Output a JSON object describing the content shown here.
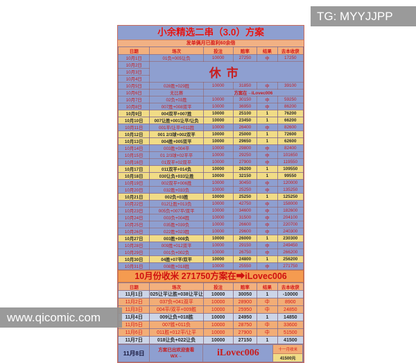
{
  "watermarks": {
    "tg": "TG: MYYJJPP",
    "site": "www.qicomic.com"
  },
  "colors": {
    "accent_red": "#d41818",
    "win_row_bg": "#8e9fd0",
    "loss_row_bg": "#f1dc86",
    "header_bg": "#f3b07e",
    "banner_bg": "#f59b50",
    "nov_win_bg": "#f2ad76",
    "nov_loss_bg": "#ccd5e8",
    "watermark_gray": "#919191"
  },
  "table": {
    "title": "小余精选二串（3.0）方案",
    "subtitle": "发单俩月已盈利60余倍",
    "columns": [
      "日期",
      "场次",
      "投注",
      "赔率",
      "结果",
      "去本收获"
    ],
    "closed_notice": "休市",
    "no_match_label": "无比赛",
    "plan_at_label": "方案在→iLovec006",
    "october": {
      "banner": "10月份收米  271750方案在➡iLovec006",
      "rows": [
        {
          "date": "10月1日",
          "match": "01负+005让负",
          "stake": "10000",
          "odds": "27250",
          "result": "中",
          "profit": "17250",
          "win": true
        },
        {
          "date": "10月2日",
          "type": "closed_start"
        },
        {
          "date": "10月3日",
          "type": "closed"
        },
        {
          "date": "10月4日",
          "type": "closed"
        },
        {
          "date": "10月5日",
          "match": "028胜+029胜",
          "stake": "10000",
          "odds": "31850",
          "result": "中",
          "profit": "39100",
          "win": true
        },
        {
          "date": "10月6日",
          "type": "nomatch"
        },
        {
          "date": "10月7日",
          "match": "02负+03胜",
          "stake": "10000",
          "odds": "30150",
          "result": "中",
          "profit": "59250",
          "win": true
        },
        {
          "date": "10月8日",
          "match": "007胜+008双平",
          "stake": "10000",
          "odds": "36950",
          "result": "中",
          "profit": "86200",
          "win": true
        },
        {
          "date": "10月9日",
          "match": "004双平+007胜",
          "stake": "10000",
          "odds": "25100",
          "result": "1",
          "profit": "76200",
          "win": false
        },
        {
          "date": "10月10日",
          "match": "007让胜+001让平/让负",
          "stake": "10000",
          "odds": "23450",
          "result": "1",
          "profit": "66200",
          "win": false
        },
        {
          "date": "10月11日",
          "match": "001平/让平+011胜",
          "stake": "10000",
          "odds": "26400",
          "result": "中",
          "profit": "82600",
          "win": true
        },
        {
          "date": "10月12日",
          "match": "001 2/3球+002双平",
          "stake": "10000",
          "odds": "25000",
          "result": "1",
          "profit": "72600",
          "win": false
        },
        {
          "date": "10月13日",
          "match": "004胜+005双平",
          "stake": "10000",
          "odds": "29650",
          "result": "1",
          "profit": "62600",
          "win": false
        },
        {
          "date": "10月14日",
          "match": "003胜+004平",
          "stake": "10000",
          "odds": "29800",
          "result": "中",
          "profit": "82400",
          "win": true
        },
        {
          "date": "10月15日",
          "match": "01 2/3球+02平平",
          "stake": "10000",
          "odds": "29250",
          "result": "中",
          "profit": "101650",
          "win": true
        },
        {
          "date": "10月16日",
          "match": "01双平+02双平",
          "stake": "10000",
          "odds": "27900",
          "result": "中",
          "profit": "119550",
          "win": true
        },
        {
          "date": "10月17日",
          "match": "011双平+014负",
          "stake": "10000",
          "odds": "26200",
          "result": "1",
          "profit": "109550",
          "win": false
        },
        {
          "date": "10月18日",
          "match": "030让负+033让胜",
          "stake": "10000",
          "odds": "32150",
          "result": "1",
          "profit": "99550",
          "win": false
        },
        {
          "date": "10月19日",
          "match": "002双平+006胜",
          "stake": "10000",
          "odds": "30450",
          "result": "中",
          "profit": "120000",
          "win": true
        },
        {
          "date": "10月20日",
          "match": "032胜+033负",
          "stake": "10000",
          "odds": "25250",
          "result": "中",
          "profit": "135250",
          "win": true
        },
        {
          "date": "10月21日",
          "match": "002负+03胜",
          "stake": "10000",
          "odds": "25250",
          "result": "1",
          "profit": "125250",
          "win": false
        },
        {
          "date": "10月22日",
          "match": "012让胜+013负",
          "stake": "10000",
          "odds": "42750",
          "result": "中",
          "profit": "158000",
          "win": true
        },
        {
          "date": "10月23日",
          "match": "005负+007平/双平",
          "stake": "10000",
          "odds": "34600",
          "result": "中",
          "profit": "182600",
          "win": true
        },
        {
          "date": "10月24日",
          "match": "003负+004胜",
          "stake": "10000",
          "odds": "31500",
          "result": "中",
          "profit": "204100",
          "win": true
        },
        {
          "date": "10月25日",
          "match": "035胜+039负",
          "stake": "10000",
          "odds": "26600",
          "result": "中",
          "profit": "220700",
          "win": true
        },
        {
          "date": "10月26日",
          "match": "022胜+023胜",
          "stake": "10000",
          "odds": "29600",
          "result": "中",
          "profit": "240300",
          "win": true
        },
        {
          "date": "10月27日",
          "match": "003胜+008负",
          "stake": "10000",
          "odds": "26000",
          "result": "1",
          "profit": "230300",
          "win": false
        },
        {
          "date": "10月28日",
          "match": "009胜+012双平",
          "stake": "10000",
          "odds": "29150",
          "result": "中",
          "profit": "249450",
          "win": true
        },
        {
          "date": "10月29日",
          "match": "001负+002负",
          "stake": "10000",
          "odds": "26750",
          "result": "中",
          "profit": "266200",
          "win": true
        },
        {
          "date": "10月30日",
          "match": "04胜+07平/双平",
          "stake": "10000",
          "odds": "24800",
          "result": "1",
          "profit": "256200",
          "win": false
        },
        {
          "date": "10月31日",
          "match": "008胜+018胜",
          "stake": "10000",
          "odds": "25550",
          "result": "中",
          "profit": "271750",
          "win": true
        }
      ]
    },
    "november": {
      "rows": [
        {
          "date": "11月1日",
          "match": "025让平让胜+038让平让胜",
          "stake": "10000",
          "odds": "30050",
          "result": "1",
          "profit": "-10000",
          "win": false
        },
        {
          "date": "11月2日",
          "match": "037负+041双平",
          "stake": "10000",
          "odds": "28900",
          "result": "中",
          "profit": "8900",
          "win": true
        },
        {
          "date": "11月3日",
          "match": "004平/双平+009胜",
          "stake": "10000",
          "odds": "25950",
          "result": "中",
          "profit": "24850",
          "win": true
        },
        {
          "date": "11月4日",
          "match": "009让负+018胜",
          "stake": "10000",
          "odds": "24950",
          "result": "1",
          "profit": "14850",
          "win": false
        },
        {
          "date": "11月5日",
          "match": "007胜+011负",
          "stake": "10000",
          "odds": "28750",
          "result": "中",
          "profit": "33600",
          "win": true
        },
        {
          "date": "11月6日",
          "match": "011胜+012平/让平",
          "stake": "10000",
          "odds": "27900",
          "result": "中",
          "profit": "51500",
          "win": true
        },
        {
          "date": "11月7日",
          "match": "018让负+022让负",
          "stake": "10000",
          "odds": "27150",
          "result": "1",
          "profit": "41500",
          "win": false
        }
      ]
    },
    "footer": {
      "date": "11月8日",
      "notice_line1": "方案已出欢迎查看",
      "notice_line2": "WX→",
      "contact": "iLovec006",
      "month_label": "十一月收米",
      "month_amount": "41500元"
    }
  }
}
